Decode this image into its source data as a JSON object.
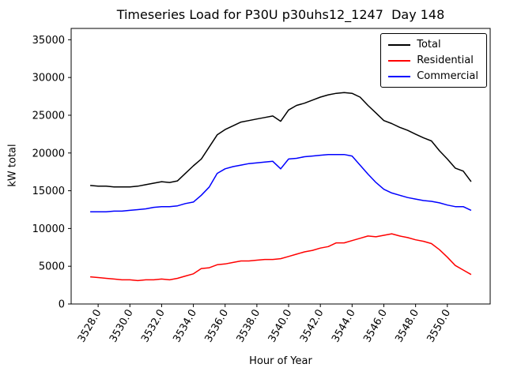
{
  "chart_data": {
    "type": "line",
    "title": "Timeseries Load for P30U p30uhs12_1247  Day 148",
    "xlabel": "Hour of Year",
    "ylabel": "kW total",
    "grid": false,
    "legend_position": "upper right",
    "xlim": [
      3526.3,
      3552.7
    ],
    "ylim": [
      0,
      36500
    ],
    "xtick_values": [
      3528,
      3530,
      3532,
      3534,
      3536,
      3538,
      3540,
      3542,
      3544,
      3546,
      3548,
      3550
    ],
    "xtick_labels": [
      "3528.0",
      "3530.0",
      "3532.0",
      "3534.0",
      "3536.0",
      "3538.0",
      "3540.0",
      "3542.0",
      "3544.0",
      "3546.0",
      "3548.0",
      "3550.0"
    ],
    "ytick_values": [
      0,
      5000,
      10000,
      15000,
      20000,
      25000,
      30000,
      35000
    ],
    "ytick_labels": [
      "0",
      "5000",
      "10000",
      "15000",
      "20000",
      "25000",
      "30000",
      "35000"
    ],
    "x": [
      3527.5,
      3528.0,
      3528.5,
      3529.0,
      3529.5,
      3530.0,
      3530.5,
      3531.0,
      3531.5,
      3532.0,
      3532.5,
      3533.0,
      3533.5,
      3534.0,
      3534.5,
      3535.0,
      3535.5,
      3536.0,
      3536.5,
      3537.0,
      3537.5,
      3538.0,
      3538.5,
      3539.0,
      3539.5,
      3540.0,
      3540.5,
      3541.0,
      3541.5,
      3542.0,
      3542.5,
      3543.0,
      3543.5,
      3544.0,
      3544.5,
      3545.0,
      3545.5,
      3546.0,
      3546.5,
      3547.0,
      3547.5,
      3548.0,
      3548.5,
      3549.0,
      3549.5,
      3550.0,
      3550.5,
      3551.0,
      3551.5
    ],
    "series": [
      {
        "name": "Total",
        "color": "#000000",
        "values": [
          15700,
          15600,
          15600,
          15500,
          15500,
          15500,
          15600,
          15800,
          16000,
          16200,
          16100,
          16300,
          17300,
          18300,
          19200,
          20800,
          22400,
          23100,
          23600,
          24100,
          24300,
          24500,
          24700,
          24900,
          24200,
          25700,
          26300,
          26600,
          27000,
          27400,
          27700,
          27900,
          28000,
          27900,
          27400,
          26300,
          25300,
          24300,
          23900,
          23400,
          23000,
          22500,
          22000,
          21600,
          20300,
          19200,
          18000,
          17600,
          16200
        ]
      },
      {
        "name": "Residential",
        "color": "#ff0000",
        "values": [
          3600,
          3500,
          3400,
          3300,
          3200,
          3200,
          3100,
          3200,
          3200,
          3300,
          3200,
          3400,
          3700,
          4000,
          4700,
          4800,
          5200,
          5300,
          5500,
          5700,
          5700,
          5800,
          5900,
          5900,
          6000,
          6300,
          6600,
          6900,
          7100,
          7400,
          7600,
          8100,
          8100,
          8400,
          8700,
          9000,
          8900,
          9100,
          9300,
          9000,
          8800,
          8500,
          8300,
          8000,
          7200,
          6200,
          5100,
          4500,
          3900
        ]
      },
      {
        "name": "Commercial",
        "color": "#0000ff",
        "values": [
          12200,
          12200,
          12200,
          12300,
          12300,
          12400,
          12500,
          12600,
          12800,
          12900,
          12900,
          13000,
          13300,
          13500,
          14400,
          15500,
          17300,
          17900,
          18200,
          18400,
          18600,
          18700,
          18800,
          18900,
          17900,
          19200,
          19300,
          19500,
          19600,
          19700,
          19800,
          19800,
          19800,
          19600,
          18400,
          17200,
          16100,
          15200,
          14700,
          14400,
          14100,
          13900,
          13700,
          13600,
          13400,
          13100,
          12900,
          12900,
          12400
        ]
      }
    ]
  }
}
